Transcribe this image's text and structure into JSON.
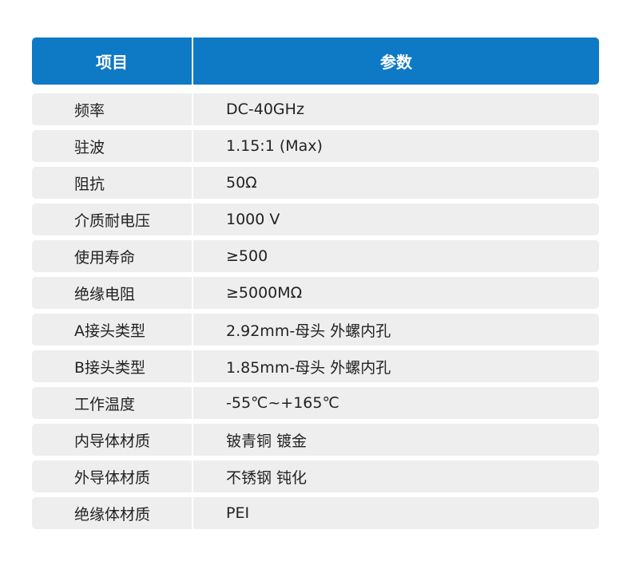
{
  "header": {
    "col1": "项目",
    "col2": "参数"
  },
  "colors": {
    "header_bg": "#0e79c5",
    "row_bg": "#eeeeee"
  },
  "rows": [
    {
      "item": "频率",
      "value": "DC-40GHz"
    },
    {
      "item": "驻波",
      "value": "1.15:1 (Max)"
    },
    {
      "item": "阻抗",
      "value": "50Ω"
    },
    {
      "item": "介质耐电压",
      "value": "1000 V"
    },
    {
      "item": "使用寿命",
      "value": "≥500"
    },
    {
      "item": "绝缘电阻",
      "value": "≥5000MΩ"
    },
    {
      "item": "A接头类型",
      "value": "2.92mm-母头 外螺内孔"
    },
    {
      "item": "B接头类型",
      "value": "1.85mm-母头 外螺内孔"
    },
    {
      "item": "工作温度",
      "value": "-55℃~+165℃"
    },
    {
      "item": "内导体材质",
      "value": "铍青铜 镀金"
    },
    {
      "item": "外导体材质",
      "value": "不锈钢 钝化"
    },
    {
      "item": "绝缘体材质",
      "value": "PEI"
    }
  ]
}
